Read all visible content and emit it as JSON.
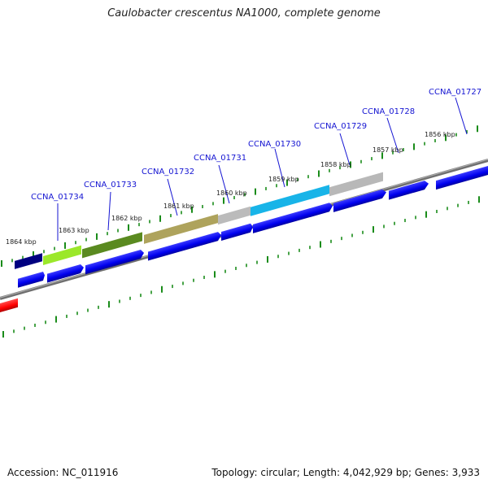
{
  "title": "Caulobacter crescentus NA1000, complete genome",
  "footer": {
    "accession": "Accession: NC_011916",
    "stats": "Topology: circular; Length: 4,042,929 bp; Genes: 3,933"
  },
  "kbp_labels": [
    "1864 kbp",
    "1863 kbp",
    "1862 kbp",
    "1861 kbp",
    "1860 kbp",
    "1859 kbp",
    "1858 kbp",
    "1857 kbp",
    "1856 kbp"
  ],
  "gene_labels": [
    "CCNA_01734",
    "CCNA_01733",
    "CCNA_01732",
    "CCNA_01731",
    "CCNA_01730",
    "CCNA_01729",
    "CCNA_01728",
    "CCNA_01727"
  ],
  "colors": {
    "cds": "#0000ee",
    "reverse_cds": "#ff0000",
    "backbone": "#888888",
    "ticks": "#1a8c1a",
    "label": "#1414d2"
  }
}
